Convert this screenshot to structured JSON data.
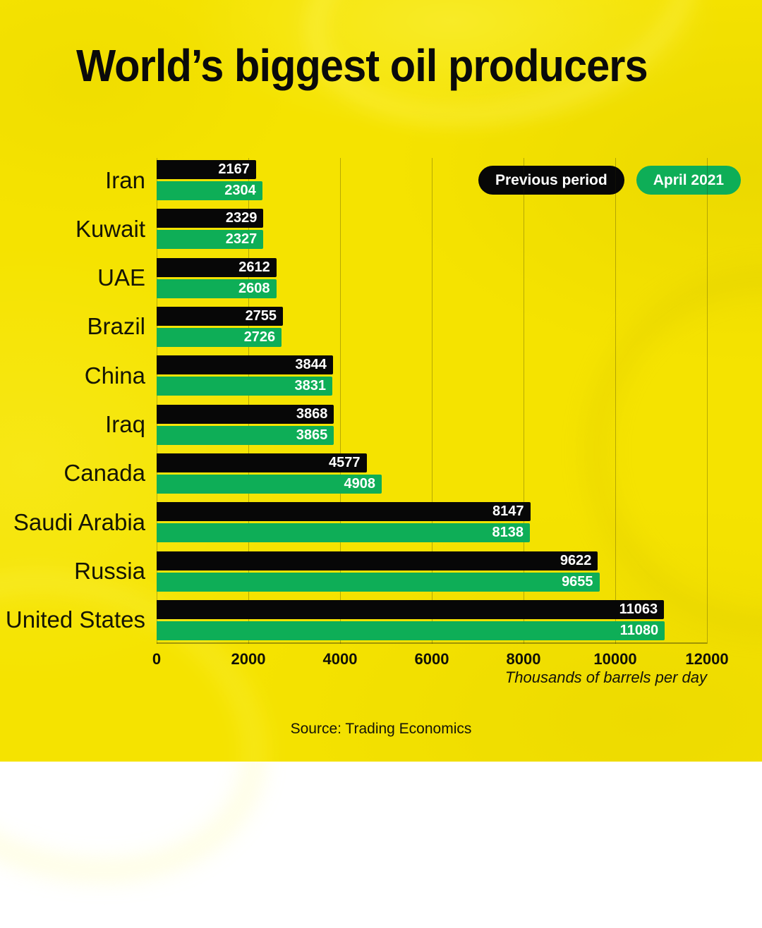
{
  "title": "World’s biggest oil producers",
  "legend": {
    "previous": {
      "label": "Previous period",
      "color": "#070707",
      "text_color": "#ffffff"
    },
    "current": {
      "label": "April 2021",
      "color": "#0eae57",
      "text_color": "#ffffff"
    }
  },
  "chart_data": {
    "type": "bar",
    "orientation": "horizontal",
    "title": "World’s biggest oil producers",
    "categories": [
      "Iran",
      "Kuwait",
      "UAE",
      "Brazil",
      "China",
      "Iraq",
      "Canada",
      "Saudi Arabia",
      "Russia",
      "United States"
    ],
    "series": [
      {
        "name": "Previous period",
        "color": "#070707",
        "values": [
          2167,
          2329,
          2612,
          2755,
          3844,
          3868,
          4577,
          8147,
          9622,
          11063
        ]
      },
      {
        "name": "April 2021",
        "color": "#0eae57",
        "values": [
          2304,
          2327,
          2608,
          2726,
          3831,
          3865,
          4908,
          8138,
          9655,
          11080
        ]
      }
    ],
    "xlabel": "Thousands of barrels per day",
    "x_ticks": [
      0,
      2000,
      4000,
      6000,
      8000,
      10000,
      12000
    ],
    "xlim": [
      0,
      12000
    ],
    "grid": true,
    "legend_position": "top-right",
    "value_labels": "inside-end"
  },
  "footer": {
    "source": "Source: Trading Economics"
  },
  "colors": {
    "background": "#f5e300",
    "bar_previous": "#070707",
    "bar_current": "#0eae57",
    "value_text": "#ffffff",
    "gridline": "rgba(40,40,10,0.30)"
  }
}
